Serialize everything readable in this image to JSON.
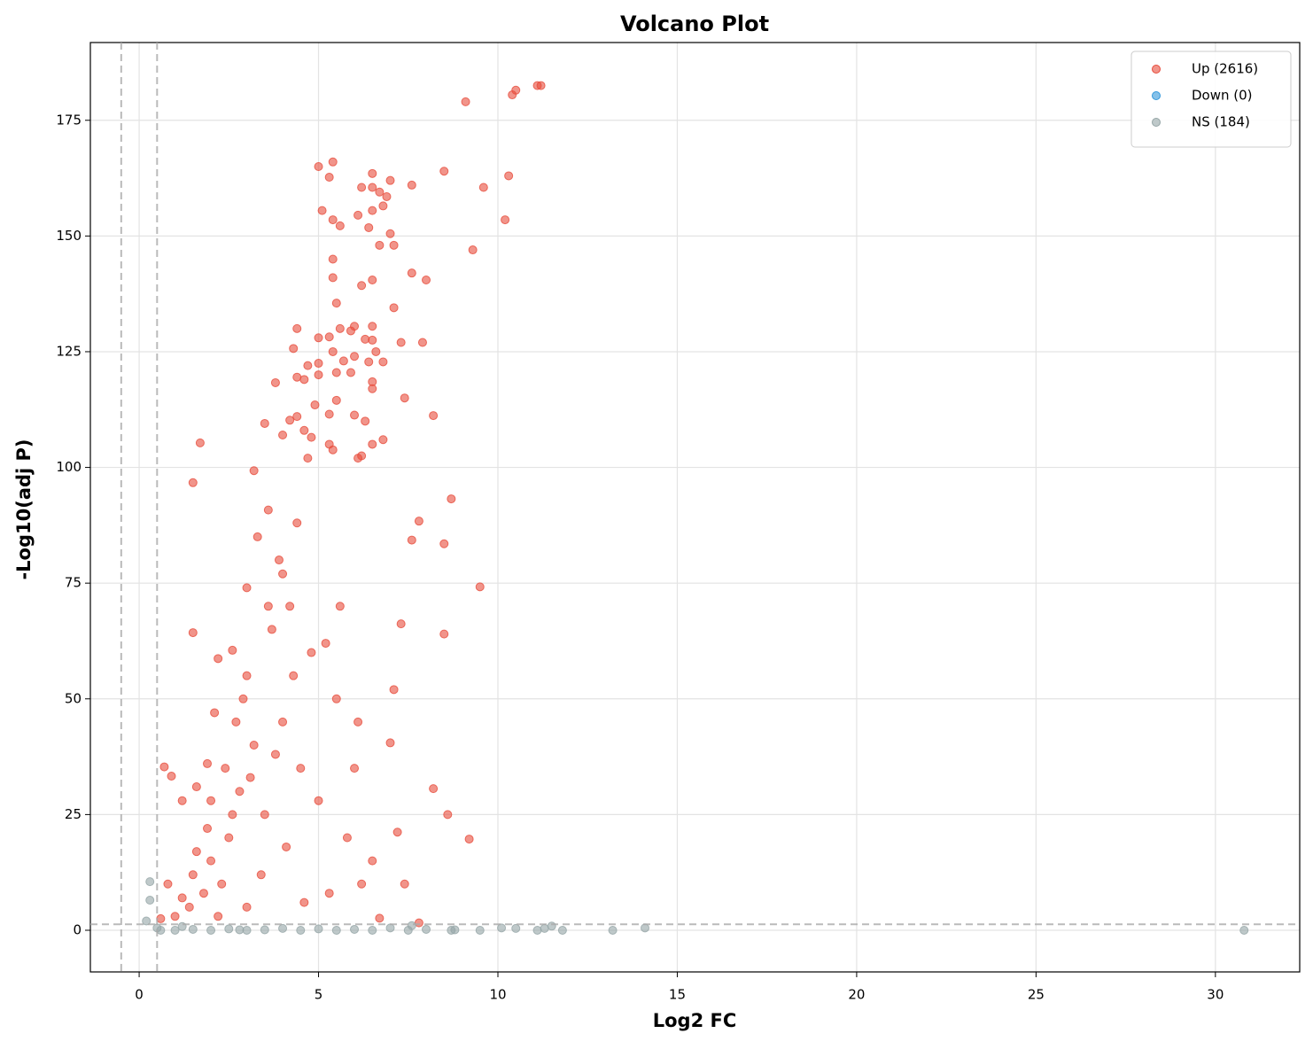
{
  "chart_data": {
    "type": "scatter",
    "title": "Volcano Plot",
    "x_label": "Log2 FC",
    "y_label": "-Log10(adj P)",
    "xlim": [
      -1.36,
      32.35
    ],
    "ylim": [
      -9,
      191.8
    ],
    "xticks": [
      0,
      5,
      10,
      15,
      20,
      25,
      30
    ],
    "yticks": [
      0,
      25,
      50,
      75,
      100,
      125,
      150,
      175
    ],
    "grid": true,
    "legend": "upper right",
    "thresholds": {
      "x": [
        -0.5,
        0.5
      ],
      "y": [
        1.3
      ]
    },
    "series": [
      {
        "name": "Up (2616)",
        "color": "#e74c3c",
        "x": [
          11.1,
          11.2,
          10.5,
          10.4,
          9.1,
          5.4,
          5.0,
          6.5,
          8.5,
          10.3,
          5.3,
          7.0,
          7.6,
          6.2,
          6.5,
          9.6,
          6.7,
          6.9,
          6.8,
          6.5,
          5.1,
          6.1,
          5.4,
          10.2,
          5.6,
          6.4,
          7.0,
          7.1,
          6.7,
          9.3,
          5.4,
          7.6,
          5.4,
          8.0,
          6.5,
          6.2,
          7.1,
          5.5,
          6.0,
          6.5,
          4.4,
          5.6,
          5.9,
          5.3,
          5.0,
          6.3,
          7.9,
          7.3,
          6.5,
          4.3,
          5.4,
          6.0,
          6.6,
          5.7,
          5.0,
          6.4,
          6.8,
          4.7,
          5.0,
          5.5,
          5.9,
          4.4,
          4.6,
          3.8,
          6.5,
          6.5,
          7.4,
          5.5,
          4.9,
          5.3,
          4.4,
          6.0,
          8.2,
          4.2,
          3.5,
          6.3,
          4.6,
          4.0,
          4.8,
          5.3,
          6.5,
          1.7,
          6.8,
          5.4,
          6.2,
          6.1,
          4.7,
          1.5,
          3.2,
          8.7,
          7.8,
          7.6,
          8.5,
          9.5,
          7.3,
          1.5,
          8.5,
          7.1,
          7.0,
          8.2,
          8.6,
          7.2,
          9.2,
          7.4,
          0.7,
          0.9,
          1.2,
          1.6,
          1.9,
          2.1,
          2.2,
          2.6,
          3.0,
          3.3,
          3.6,
          3.9,
          4.2,
          4.8,
          5.5,
          6.1,
          6.0,
          6.5,
          6.7,
          7.8,
          6.2,
          2.0,
          2.5,
          2.8,
          3.2,
          2.3,
          1.8,
          1.4,
          1.0,
          0.6,
          3.5,
          4.0,
          4.5,
          5.0,
          3.0,
          2.7,
          2.4,
          1.9,
          1.5,
          1.2,
          0.8,
          3.7,
          4.3,
          2.9,
          3.4,
          4.1,
          5.3,
          5.8,
          2.2,
          3.0,
          4.6,
          2.6,
          3.1,
          3.8,
          2.0,
          1.6,
          4.4,
          4.0,
          3.6,
          5.2,
          5.6
        ],
        "values": [
          182.5,
          182.5,
          181.5,
          180.5,
          179,
          166,
          165,
          163.5,
          164,
          163,
          162.7,
          162,
          161,
          160.5,
          160.5,
          160.5,
          159.5,
          158.5,
          156.5,
          155.5,
          155.5,
          154.5,
          153.5,
          153.5,
          152.2,
          151.8,
          150.5,
          148,
          148,
          147,
          145,
          142,
          141,
          140.5,
          140.5,
          139.3,
          134.5,
          135.5,
          130.5,
          130.5,
          130,
          130,
          129.5,
          128.2,
          128,
          127.7,
          127,
          127,
          127.5,
          125.7,
          125,
          124,
          125,
          123,
          122.5,
          122.8,
          122.8,
          122,
          120,
          120.5,
          120.5,
          119.5,
          119,
          118.3,
          118.5,
          117,
          115,
          114.5,
          113.5,
          111.5,
          111,
          111.3,
          111.2,
          110.2,
          109.5,
          110,
          108,
          107,
          106.5,
          105,
          105,
          105.3,
          106,
          103.8,
          102.5,
          102,
          102,
          96.7,
          99.3,
          93.2,
          88.4,
          84.3,
          83.5,
          74.2,
          66.2,
          64.3,
          64,
          52,
          40.5,
          30.6,
          25,
          21.2,
          19.7,
          10,
          35.3,
          33.3,
          28,
          31,
          36,
          47,
          58.7,
          60.5,
          74,
          85,
          90.8,
          80,
          70,
          60,
          50,
          45,
          35,
          15,
          2.6,
          1.6,
          10,
          15,
          20,
          30,
          40,
          10,
          8,
          5,
          3,
          2.5,
          25,
          45,
          35,
          28,
          55,
          45,
          35,
          22,
          12,
          7,
          10,
          65,
          55,
          50,
          12,
          18,
          8,
          20,
          3,
          5,
          6,
          25,
          33,
          38,
          28,
          17,
          88,
          77,
          70,
          62,
          70
        ]
      },
      {
        "name": "Down (0)",
        "color": "#3498db",
        "x": [],
        "values": []
      },
      {
        "name": "NS (184)",
        "color": "#95a5a6",
        "x": [
          0.2,
          0.3,
          0.3,
          0.5,
          0.6,
          1.0,
          1.5,
          2.0,
          2.5,
          3.0,
          3.5,
          4.0,
          4.5,
          5.0,
          5.5,
          6.0,
          6.5,
          7.0,
          7.5,
          8.0,
          8.7,
          8.8,
          9.5,
          10.1,
          10.5,
          11.1,
          11.3,
          11.5,
          11.8,
          13.2,
          14.1,
          30.8,
          7.6,
          1.2,
          2.8
        ],
        "values": [
          2,
          10.5,
          6.5,
          0.5,
          0,
          0,
          0.2,
          0,
          0.3,
          0,
          0.1,
          0.4,
          0,
          0.3,
          0,
          0.2,
          0,
          0.5,
          0,
          0.2,
          0,
          0.1,
          0,
          0.5,
          0.4,
          0,
          0.4,
          0.9,
          0,
          0,
          0.5,
          0,
          1.0,
          0.8,
          0.1
        ]
      }
    ]
  }
}
